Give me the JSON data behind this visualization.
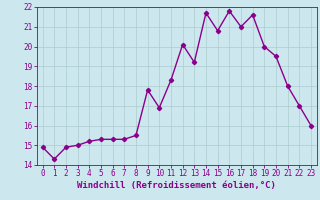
{
  "x": [
    0,
    1,
    2,
    3,
    4,
    5,
    6,
    7,
    8,
    9,
    10,
    11,
    12,
    13,
    14,
    15,
    16,
    17,
    18,
    19,
    20,
    21,
    22,
    23
  ],
  "y": [
    14.9,
    14.3,
    14.9,
    15.0,
    15.2,
    15.3,
    15.3,
    15.3,
    15.5,
    17.8,
    16.9,
    18.3,
    20.1,
    19.2,
    21.7,
    20.8,
    21.8,
    21.0,
    21.6,
    20.0,
    19.5,
    18.0,
    17.0,
    16.0
  ],
  "line_color": "#8B008B",
  "marker": "D",
  "marker_size": 2.2,
  "line_width": 1.0,
  "bg_color": "#cce8ee",
  "grid_color": "#aacccc",
  "tick_color": "#8B008B",
  "label_color": "#8B008B",
  "xlabel": "Windchill (Refroidissement éolien,°C)",
  "ylim": [
    14,
    22
  ],
  "xlim": [
    -0.5,
    23.5
  ],
  "yticks": [
    14,
    15,
    16,
    17,
    18,
    19,
    20,
    21,
    22
  ],
  "xticks": [
    0,
    1,
    2,
    3,
    4,
    5,
    6,
    7,
    8,
    9,
    10,
    11,
    12,
    13,
    14,
    15,
    16,
    17,
    18,
    19,
    20,
    21,
    22,
    23
  ],
  "xlabel_fontsize": 6.5,
  "tick_fontsize": 5.5
}
